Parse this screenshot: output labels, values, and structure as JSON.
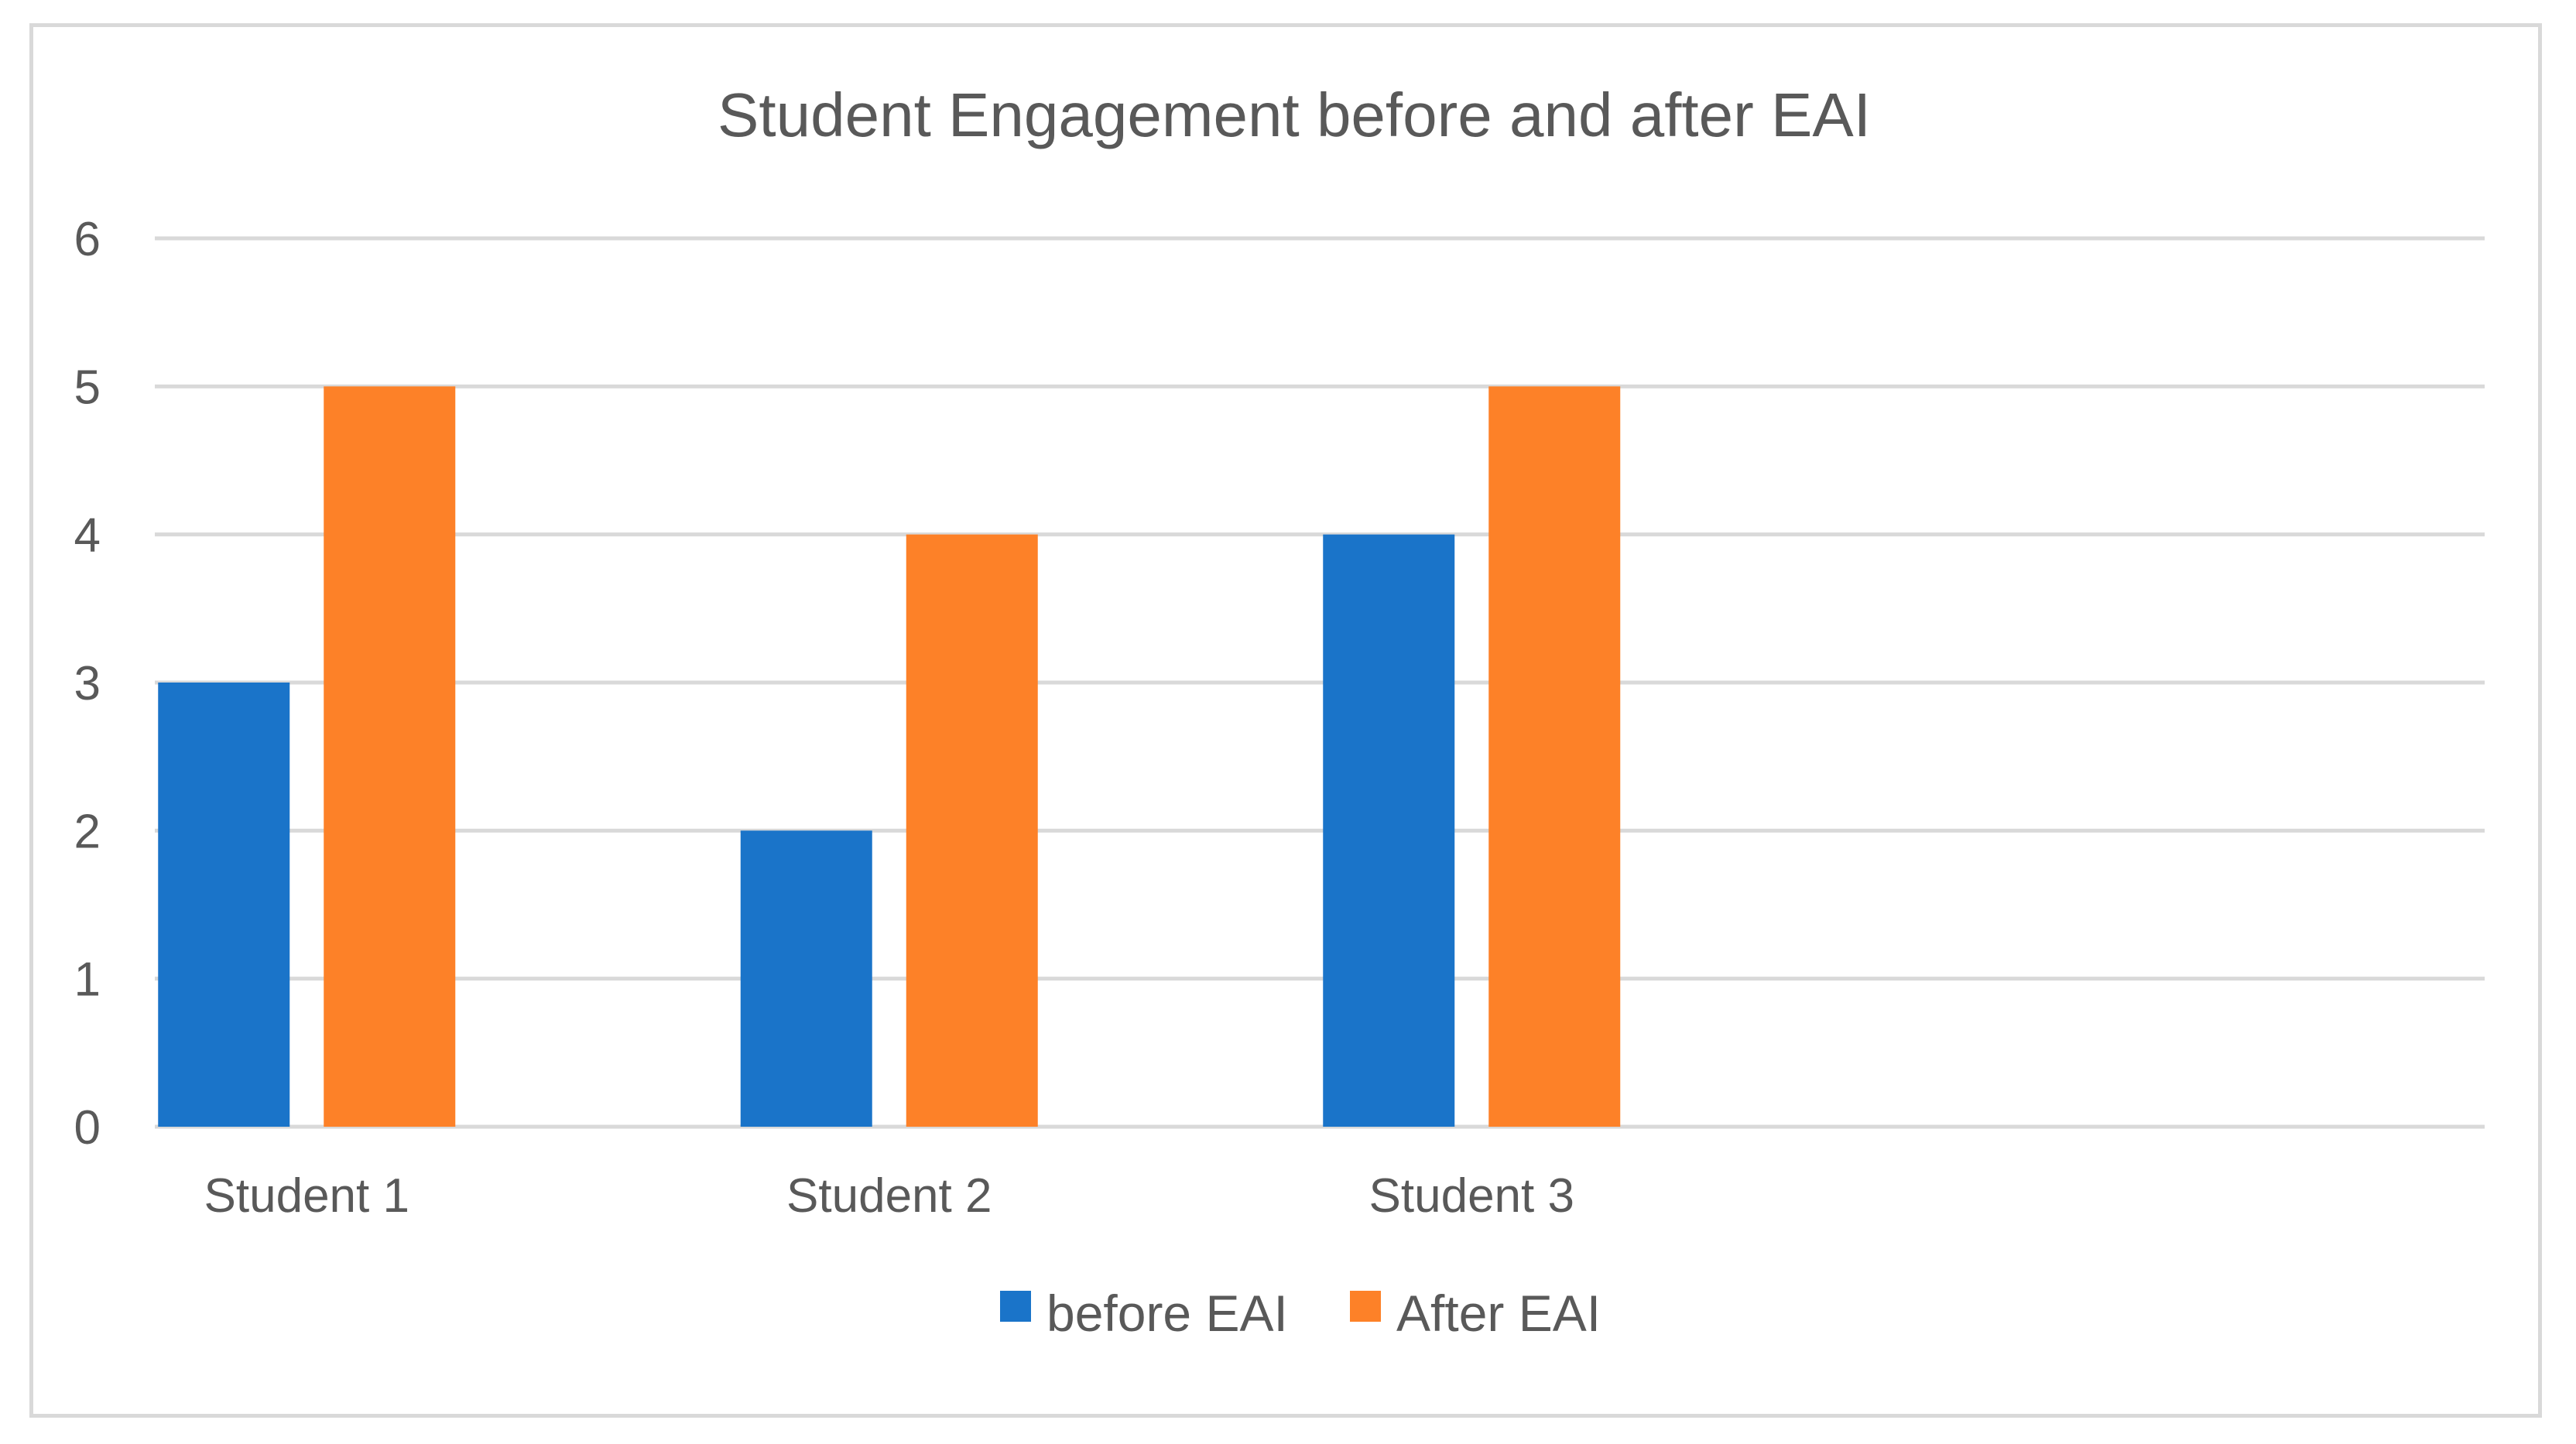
{
  "chart_data": {
    "type": "bar",
    "title": "Student Engagement before and after EAI",
    "xlabel": "",
    "ylabel": "",
    "categories": [
      "Student 1",
      "Student 2",
      "Student 3"
    ],
    "series": [
      {
        "name": "before EAI",
        "values": [
          3,
          2,
          4
        ],
        "color": "#1a74c9"
      },
      {
        "name": "After EAI",
        "values": [
          5,
          4,
          5
        ],
        "color": "#fd8128"
      }
    ],
    "ylim": [
      0,
      6
    ],
    "yticks": [
      "0",
      "1",
      "2",
      "3",
      "4",
      "5",
      "6"
    ],
    "grid": true,
    "legend_position": "bottom"
  }
}
